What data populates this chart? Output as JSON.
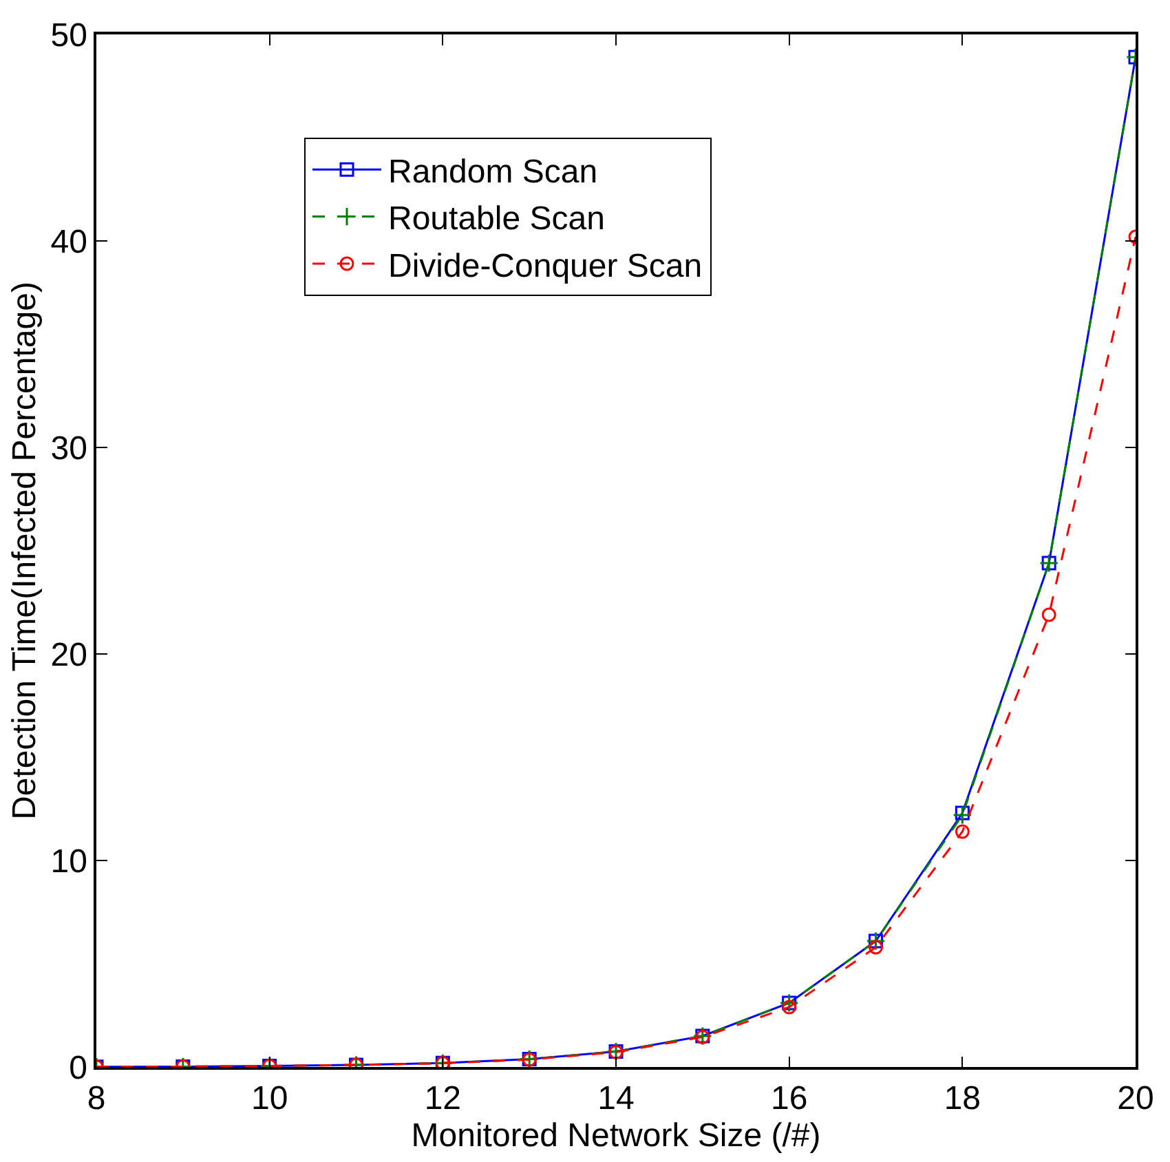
{
  "chart_data": {
    "type": "line",
    "xlabel": "Monitored Network Size (/#)",
    "ylabel": "Detection Time(Infected Percentage)",
    "x": [
      8,
      9,
      10,
      11,
      12,
      13,
      14,
      15,
      16,
      17,
      18,
      19,
      20
    ],
    "series": [
      {
        "name": "Random Scan",
        "color": "#0000ff",
        "marker": "square",
        "line_style": "solid",
        "values": [
          0.01,
          0.02,
          0.05,
          0.1,
          0.19,
          0.38,
          0.75,
          1.5,
          3.1,
          6.1,
          12.3,
          24.4,
          48.9
        ]
      },
      {
        "name": "Routable Scan",
        "color": "#008000",
        "marker": "cross",
        "line_style": "dashed",
        "values": [
          0.01,
          0.02,
          0.05,
          0.1,
          0.19,
          0.38,
          0.75,
          1.5,
          3.1,
          6.1,
          12.2,
          24.4,
          48.9
        ]
      },
      {
        "name": "Divide-Conquer Scan",
        "color": "#ff0000",
        "marker": "circle",
        "line_style": "dashed",
        "values": [
          0.01,
          0.02,
          0.05,
          0.1,
          0.18,
          0.36,
          0.72,
          1.45,
          2.9,
          5.8,
          11.4,
          21.9,
          40.2
        ]
      }
    ],
    "xlim": [
      8,
      20
    ],
    "xticks": [
      8,
      10,
      12,
      14,
      16,
      18,
      20
    ],
    "ylim": [
      0,
      50
    ],
    "yticks": [
      0,
      10,
      20,
      30,
      40,
      50
    ],
    "legend": "top left"
  }
}
